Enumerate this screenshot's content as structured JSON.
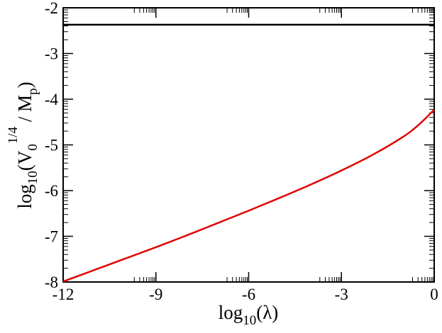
{
  "chart_data": {
    "type": "line",
    "xlabel": {
      "base": "log",
      "sub": "10",
      "arg": "(λ)"
    },
    "ylabel": {
      "base": "log",
      "sub": "10",
      "open": "(V",
      "vsub": "0",
      "sup": "1/4",
      "tail": " / M",
      "tailsub": "p",
      "close": ")"
    },
    "xlim": [
      -12,
      0
    ],
    "ylim": [
      -8,
      -2
    ],
    "xticks": [
      -12,
      -9,
      -6,
      -3,
      0
    ],
    "yticks": [
      -8,
      -7,
      -6,
      -5,
      -4,
      -3,
      -2
    ],
    "xtick_labels": [
      "-12",
      "-9",
      "-6",
      "-3",
      "0"
    ],
    "ytick_labels": [
      "-8",
      "-7",
      "-6",
      "-5",
      "-4",
      "-3",
      "-2"
    ],
    "grid": false,
    "series": [
      {
        "color": "#000000",
        "x": [
          -12,
          0
        ],
        "y": [
          -2.37,
          -2.37
        ]
      },
      {
        "color": "#e00000",
        "x": [
          -12,
          -11,
          -10,
          -9,
          -8,
          -7,
          -6,
          -5,
          -4,
          -3,
          -2,
          -1,
          -0.5,
          0
        ],
        "y": [
          -7.99,
          -7.74,
          -7.49,
          -7.24,
          -6.98,
          -6.71,
          -6.44,
          -6.16,
          -5.87,
          -5.56,
          -5.22,
          -4.82,
          -4.56,
          -4.23
        ]
      }
    ]
  }
}
